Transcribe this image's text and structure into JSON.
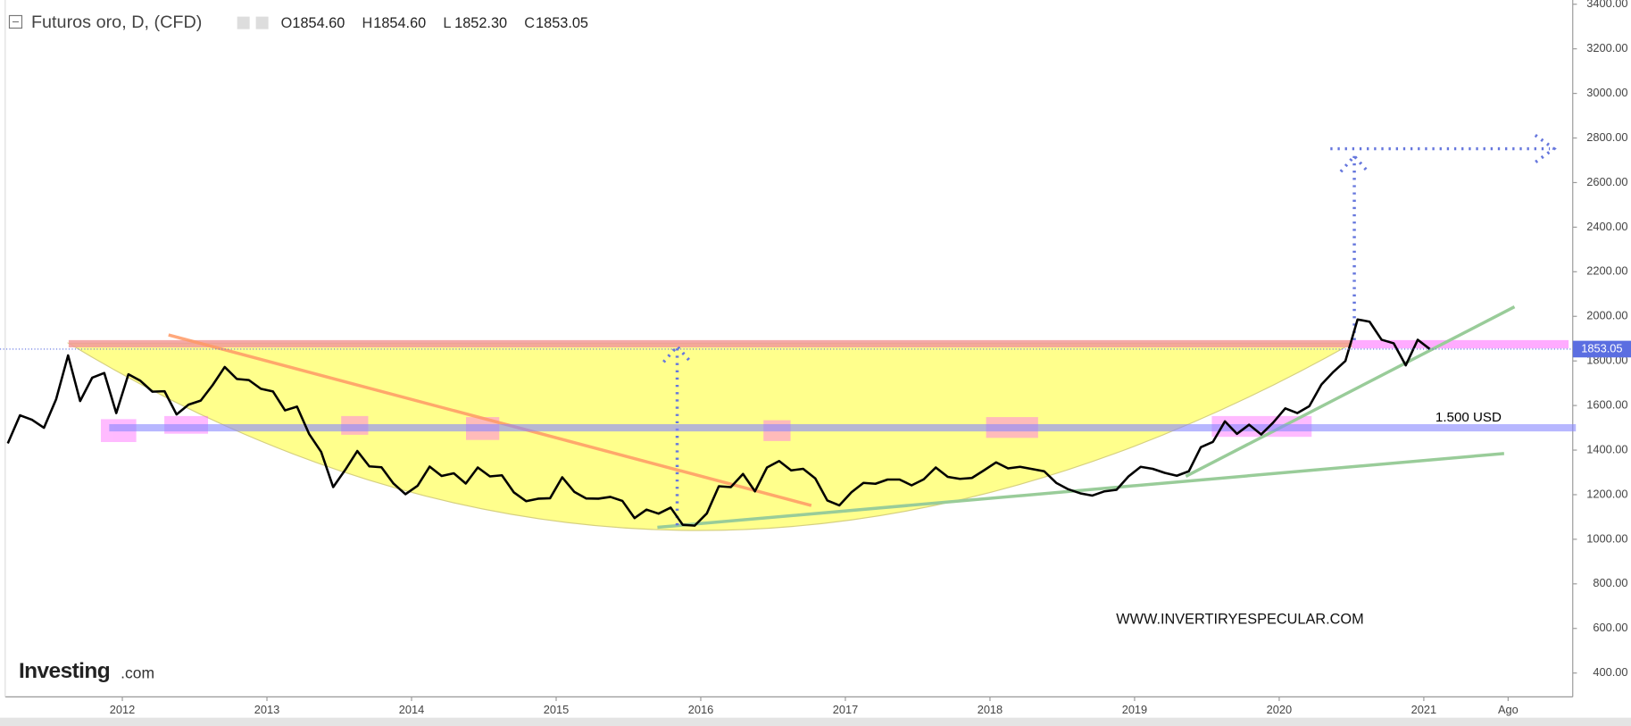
{
  "header": {
    "ohlc": [
      {
        "label": "O",
        "value": "1854.60"
      },
      {
        "label": "H",
        "value": "1854.60"
      },
      {
        "label": "L",
        "value": "1852.30"
      },
      {
        "label": "C",
        "value": "1853.05"
      }
    ]
  },
  "branding": {
    "logo": [
      "Investing",
      ".com"
    ],
    "watermark": "WWW.INVERTIRYESPECULAR.COM"
  },
  "chart_data": {
    "type": "line",
    "title": "Futuros oro, D, (CFD)",
    "color": "#000000",
    "x": [
      2011.208,
      2011.292,
      2011.375,
      2011.458,
      2011.542,
      2011.625,
      2011.708,
      2011.792,
      2011.875,
      2011.958,
      2012.042,
      2012.125,
      2012.208,
      2012.292,
      2012.375,
      2012.458,
      2012.542,
      2012.625,
      2012.708,
      2012.792,
      2012.875,
      2012.958,
      2013.042,
      2013.125,
      2013.208,
      2013.292,
      2013.375,
      2013.458,
      2013.542,
      2013.625,
      2013.708,
      2013.792,
      2013.875,
      2013.958,
      2014.042,
      2014.125,
      2014.208,
      2014.292,
      2014.375,
      2014.458,
      2014.542,
      2014.625,
      2014.708,
      2014.792,
      2014.875,
      2014.958,
      2015.042,
      2015.125,
      2015.208,
      2015.292,
      2015.375,
      2015.458,
      2015.542,
      2015.625,
      2015.708,
      2015.792,
      2015.875,
      2015.958,
      2016.042,
      2016.125,
      2016.208,
      2016.292,
      2016.375,
      2016.458,
      2016.542,
      2016.625,
      2016.708,
      2016.792,
      2016.875,
      2016.958,
      2017.042,
      2017.125,
      2017.208,
      2017.292,
      2017.375,
      2017.458,
      2017.542,
      2017.625,
      2017.708,
      2017.792,
      2017.875,
      2017.958,
      2018.042,
      2018.125,
      2018.208,
      2018.292,
      2018.375,
      2018.458,
      2018.542,
      2018.625,
      2018.708,
      2018.792,
      2018.875,
      2018.958,
      2019.042,
      2019.125,
      2019.208,
      2019.292,
      2019.375,
      2019.458,
      2019.542,
      2019.625,
      2019.708,
      2019.792,
      2019.875,
      2019.958,
      2020.042,
      2020.125,
      2020.208,
      2020.292,
      2020.375,
      2020.458,
      2020.542,
      2020.625,
      2020.708,
      2020.792,
      2020.875,
      2020.958,
      2021.042
    ],
    "values": [
      1430,
      1556,
      1536,
      1500,
      1628,
      1825,
      1620,
      1725,
      1746,
      1566,
      1740,
      1711,
      1662,
      1664,
      1560,
      1604,
      1622,
      1692,
      1773,
      1719,
      1714,
      1675,
      1663,
      1578,
      1595,
      1472,
      1392,
      1234,
      1312,
      1396,
      1327,
      1323,
      1250,
      1202,
      1240,
      1326,
      1284,
      1296,
      1250,
      1322,
      1282,
      1287,
      1210,
      1171,
      1182,
      1184,
      1278,
      1213,
      1183,
      1182,
      1190,
      1172,
      1095,
      1133,
      1115,
      1142,
      1065,
      1061,
      1116,
      1238,
      1234,
      1293,
      1215,
      1322,
      1351,
      1309,
      1316,
      1273,
      1174,
      1152,
      1211,
      1253,
      1249,
      1268,
      1268,
      1242,
      1269,
      1322,
      1280,
      1271,
      1275,
      1309,
      1345,
      1318,
      1325,
      1315,
      1305,
      1253,
      1224,
      1206,
      1196,
      1215,
      1222,
      1282,
      1325,
      1316,
      1298,
      1285,
      1305,
      1413,
      1437,
      1529,
      1473,
      1514,
      1470,
      1523,
      1587,
      1566,
      1597,
      1694,
      1751,
      1800,
      1986,
      1976,
      1895,
      1879,
      1780,
      1895,
      1853
    ],
    "last_price": 1853.05,
    "level": {
      "label": "1.500 USD",
      "value": 1500
    },
    "xlim": [
      2011.19,
      2022.03
    ],
    "xticks": [
      2012,
      2013,
      2014,
      2015,
      2016,
      2017,
      2018,
      2019,
      2020,
      2021,
      {
        "value": 2021.583,
        "label": "Ago"
      }
    ],
    "ylim": [
      293,
      3419
    ],
    "yticks": [
      {
        "value": 400,
        "label": "400.00"
      },
      {
        "value": 600,
        "label": "600.00"
      },
      {
        "value": 800,
        "label": "800.00"
      },
      {
        "value": 1000,
        "label": "1000.00"
      },
      {
        "value": 1200,
        "label": "1200.00"
      },
      {
        "value": 1400,
        "label": "1400.00"
      },
      {
        "value": 1600,
        "label": "1600.00"
      },
      {
        "value": 1800,
        "label": "1800.00"
      },
      {
        "value": 2000,
        "label": "2000.00"
      },
      {
        "value": 2200,
        "label": "2200.00"
      },
      {
        "value": 2400,
        "label": "2400.00"
      },
      {
        "value": 2600,
        "label": "2600.00"
      },
      {
        "value": 2800,
        "label": "2800.00"
      },
      {
        "value": 3000,
        "label": "3000.00"
      },
      {
        "value": 3200,
        "label": "3200.00"
      },
      {
        "value": 3400,
        "label": "3400.00"
      }
    ]
  }
}
